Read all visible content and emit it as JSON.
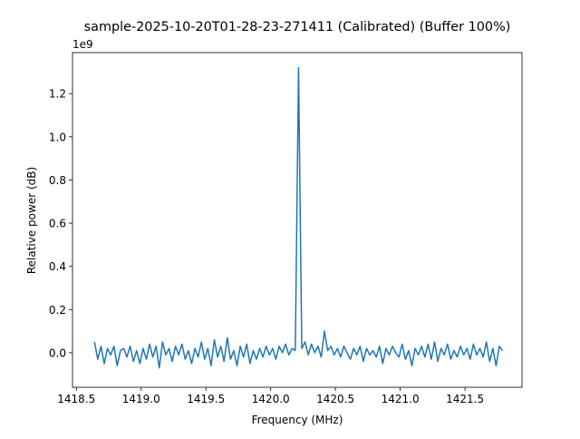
{
  "chart_data": {
    "type": "line",
    "title": "sample-2025-10-20T01-28-23-271411 (Calibrated) (Buffer 100%)",
    "xlabel": "Frequency (MHz)",
    "ylabel": "Relative power (dB)",
    "y_offset_label": "1e9",
    "xlim": [
      1418.47,
      1421.94
    ],
    "ylim": [
      -0.16,
      1.39
    ],
    "xticks": [
      1418.5,
      1419.0,
      1419.5,
      1420.0,
      1420.5,
      1421.0,
      1421.5
    ],
    "xtick_labels": [
      "1418.5",
      "1419.0",
      "1419.5",
      "1420.0",
      "1420.5",
      "1421.0",
      "1421.5"
    ],
    "yticks": [
      0.0,
      0.2,
      0.4,
      0.6,
      0.8,
      1.0,
      1.2
    ],
    "ytick_labels": [
      "0.0",
      "0.2",
      "0.4",
      "0.6",
      "0.8",
      "1.0",
      "1.2"
    ],
    "grid": false,
    "line_color": "#1f77b4",
    "x_start": 1418.64,
    "x_step": 0.025,
    "values": [
      0.05,
      -0.03,
      0.03,
      -0.05,
      0.02,
      -0.01,
      0.03,
      -0.06,
      0.01,
      0.02,
      -0.02,
      0.03,
      -0.04,
      0.01,
      -0.05,
      0.02,
      -0.03,
      0.04,
      -0.02,
      0.03,
      -0.07,
      0.05,
      -0.01,
      0.02,
      -0.04,
      0.03,
      -0.01,
      0.04,
      -0.03,
      0.01,
      -0.05,
      0.02,
      -0.02,
      0.05,
      -0.03,
      0.02,
      -0.06,
      0.06,
      -0.02,
      0.03,
      -0.04,
      0.07,
      -0.03,
      0.01,
      -0.06,
      0.03,
      -0.02,
      0.04,
      -0.05,
      0.01,
      -0.03,
      0.02,
      -0.02,
      0.03,
      -0.01,
      0.02,
      -0.03,
      0.03,
      0.0,
      0.04,
      -0.01,
      0.02,
      0.01,
      1.32,
      0.02,
      0.05,
      -0.01,
      0.04,
      0.0,
      0.03,
      -0.02,
      0.1,
      0.01,
      0.03,
      -0.01,
      0.02,
      -0.02,
      0.03,
      0.0,
      -0.03,
      0.02,
      -0.01,
      0.03,
      -0.04,
      0.02,
      -0.01,
      0.01,
      -0.02,
      0.03,
      -0.05,
      0.02,
      -0.01,
      0.03,
      0.0,
      -0.02,
      0.04,
      -0.03,
      0.01,
      -0.06,
      0.02,
      -0.01,
      0.03,
      -0.02,
      0.04,
      -0.03,
      0.05,
      -0.04,
      0.02,
      -0.01,
      0.04,
      -0.03,
      0.01,
      -0.02,
      0.03,
      -0.01,
      0.02,
      -0.03,
      0.04,
      -0.01,
      0.02,
      -0.02,
      0.05,
      -0.04,
      0.02,
      -0.06,
      0.03,
      0.01
    ]
  }
}
